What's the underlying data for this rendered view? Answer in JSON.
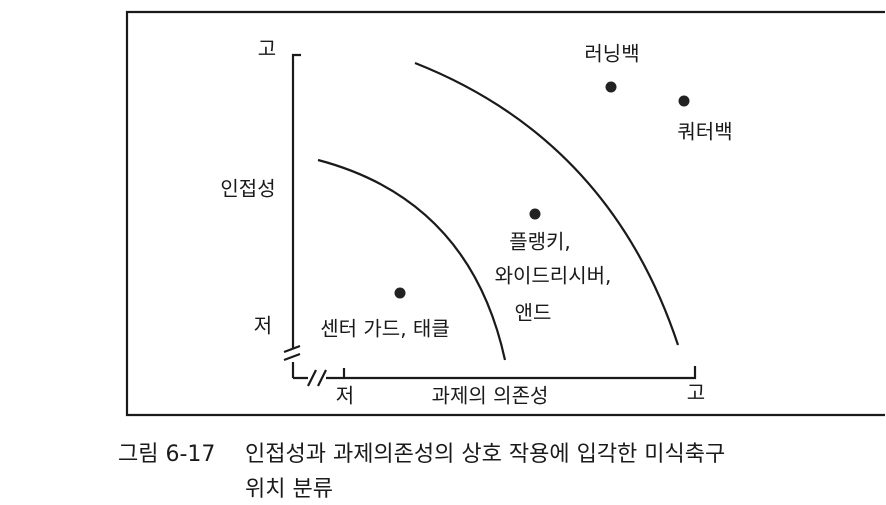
{
  "y_axis": {
    "high": "고",
    "label": "인접성",
    "low": "저"
  },
  "x_axis": {
    "low": "저",
    "label": "과제의 의존성",
    "high": "고"
  },
  "points": [
    {
      "label": [
        "러닝백"
      ]
    },
    {
      "label": [
        "쿼터백"
      ]
    },
    {
      "label": [
        "플랭키,",
        "와이드리시버,",
        "앤드"
      ]
    },
    {
      "label": [
        "센터 가드, 태클"
      ]
    }
  ],
  "caption": {
    "number": "그림 6-17",
    "lines": [
      "인접성과 과제의존성의 상호 작용에 입각한 미식축구",
      "위치 분류"
    ]
  }
}
